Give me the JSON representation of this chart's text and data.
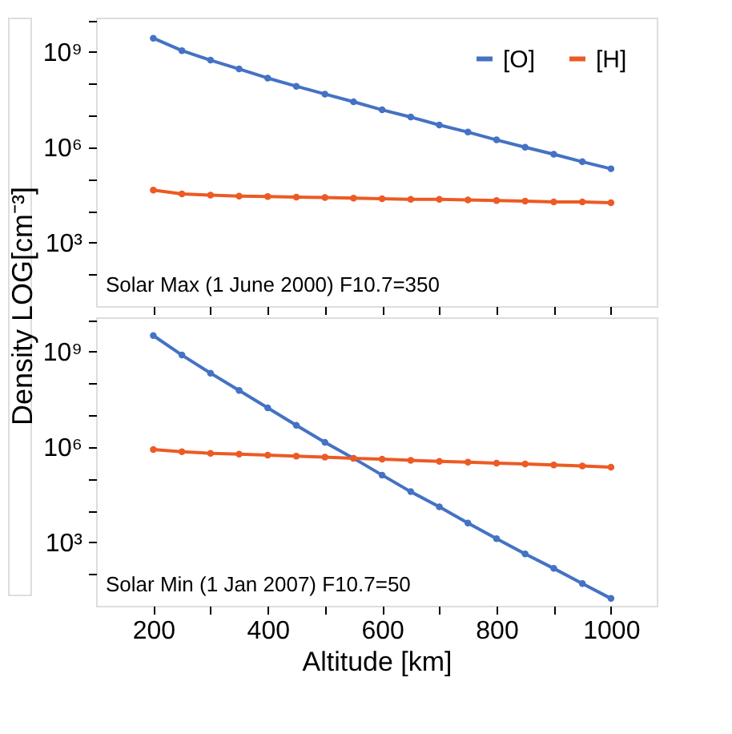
{
  "chart_data": [
    {
      "type": "line",
      "ylabel": "Density LOG[cm⁻³]",
      "x": [
        200,
        250,
        300,
        350,
        400,
        450,
        500,
        550,
        600,
        650,
        700,
        750,
        800,
        850,
        900,
        950,
        1000
      ],
      "series": [
        {
          "name": "[O]",
          "color": "#4472c4",
          "values": [
            2700000000.0,
            1100000000.0,
            550000000.0,
            290000000.0,
            150000000.0,
            83000000.0,
            47000000.0,
            27000000.0,
            15000000.0,
            8900000.0,
            5000000.0,
            3000000.0,
            1700000.0,
            1000000.0,
            600000.0,
            350000.0,
            210000.0
          ]
        },
        {
          "name": "[H]",
          "color": "#ed5a24",
          "values": [
            45000.0,
            34000.0,
            31000.0,
            29000.0,
            28000.0,
            27000.0,
            26000.0,
            25000.0,
            24000.0,
            23000.0,
            23000.0,
            22000.0,
            21000.0,
            20000.0,
            19000.0,
            19000.0,
            18000.0
          ]
        }
      ],
      "log": "y",
      "xlim": [
        100,
        1080
      ],
      "xticks": [
        200,
        {
          "value": 300,
          "label": null
        },
        400,
        {
          "value": 500,
          "label": null
        },
        600,
        {
          "value": 700,
          "label": null
        },
        800,
        {
          "value": 900,
          "label": null
        },
        1000
      ],
      "ylim": [
        10,
        12000000000.0
      ],
      "yticks": [
        {
          "value": 100,
          "label": null
        },
        {
          "value": 1000,
          "label": "10³"
        },
        {
          "value": 10000,
          "label": null
        },
        {
          "value": 100000,
          "label": null
        },
        {
          "value": 1000000,
          "label": "10⁶"
        },
        {
          "value": 10000000,
          "label": null
        },
        {
          "value": 100000000,
          "label": null
        },
        {
          "value": 1000000000,
          "label": "10⁹"
        },
        {
          "value": 10000000000,
          "label": null
        }
      ],
      "tick_labels": "y",
      "grid": false,
      "legend": "top right",
      "marker": "circle",
      "line_style": "solid",
      "annotations": [
        "Solar Max (1 June 2000) F10.7=350"
      ]
    },
    {
      "type": "line",
      "xlabel": "Altitude [km]",
      "x": [
        200,
        250,
        300,
        350,
        400,
        450,
        500,
        550,
        600,
        650,
        700,
        750,
        800,
        850,
        900,
        950,
        1000
      ],
      "series": [
        {
          "color": "#4472c4",
          "values": [
            3200000000.0,
            780000000.0,
            210000000.0,
            60000000.0,
            17000000.0,
            4800000.0,
            1400000.0,
            440000.0,
            130000.0,
            39000.0,
            13000.0,
            4000.0,
            1300.0,
            430,
            150,
            50,
            17
          ]
        },
        {
          "color": "#ed5a24",
          "values": [
            830000.0,
            710000.0,
            630000.0,
            590000.0,
            550000.0,
            510000.0,
            480000.0,
            440000.0,
            410000.0,
            380000.0,
            350000.0,
            330000.0,
            310000.0,
            290000.0,
            270000.0,
            250000.0,
            230000.0
          ]
        }
      ],
      "log": "y",
      "xlim": [
        100,
        1080
      ],
      "xticks": [
        200,
        {
          "value": 300,
          "label": null
        },
        400,
        {
          "value": 500,
          "label": null
        },
        600,
        {
          "value": 700,
          "label": null
        },
        800,
        {
          "value": 900,
          "label": null
        },
        1000
      ],
      "ylim": [
        10,
        12000000000.0
      ],
      "yticks": [
        {
          "value": 100,
          "label": null
        },
        {
          "value": 1000,
          "label": "10³"
        },
        {
          "value": 10000,
          "label": null
        },
        {
          "value": 100000,
          "label": null
        },
        {
          "value": 1000000,
          "label": "10⁶"
        },
        {
          "value": 10000000,
          "label": null
        },
        {
          "value": 100000000,
          "label": null
        },
        {
          "value": 1000000000,
          "label": "10⁹"
        },
        {
          "value": 10000000000,
          "label": null
        }
      ],
      "grid": false,
      "legend": false,
      "marker": "circle",
      "line_style": "solid",
      "annotations": [
        "Solar Min (1 Jan 2007) F10.7=50"
      ]
    }
  ]
}
